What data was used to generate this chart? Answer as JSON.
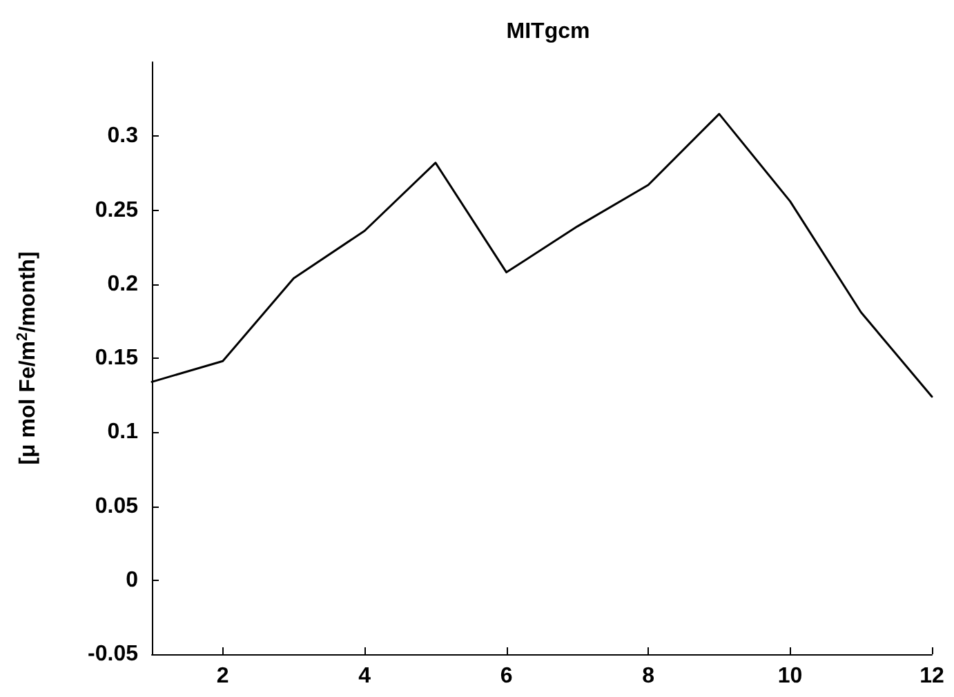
{
  "chart_data": {
    "type": "line",
    "title": "MITgcm",
    "ylabel": "[μ mol Fe/m$^{2}$/month]",
    "x": [
      1,
      2,
      3,
      4,
      5,
      6,
      7,
      8,
      9,
      10,
      11,
      12
    ],
    "series": [
      {
        "color": "#000000",
        "values": [
          0.134,
          0.148,
          0.204,
          0.236,
          0.282,
          0.208,
          0.239,
          0.267,
          0.315,
          0.256,
          0.181,
          0.124
        ]
      }
    ],
    "xlim": [
      1,
      12
    ],
    "xticks": [
      2,
      4,
      6,
      8,
      10,
      12
    ],
    "ylim": [
      -0.05,
      0.35
    ],
    "yticks": [
      -0.05,
      0,
      0.05,
      0.1,
      0.15,
      0.2,
      0.25,
      0.3
    ],
    "grid": false,
    "marker": "none",
    "line_style": "solid"
  }
}
